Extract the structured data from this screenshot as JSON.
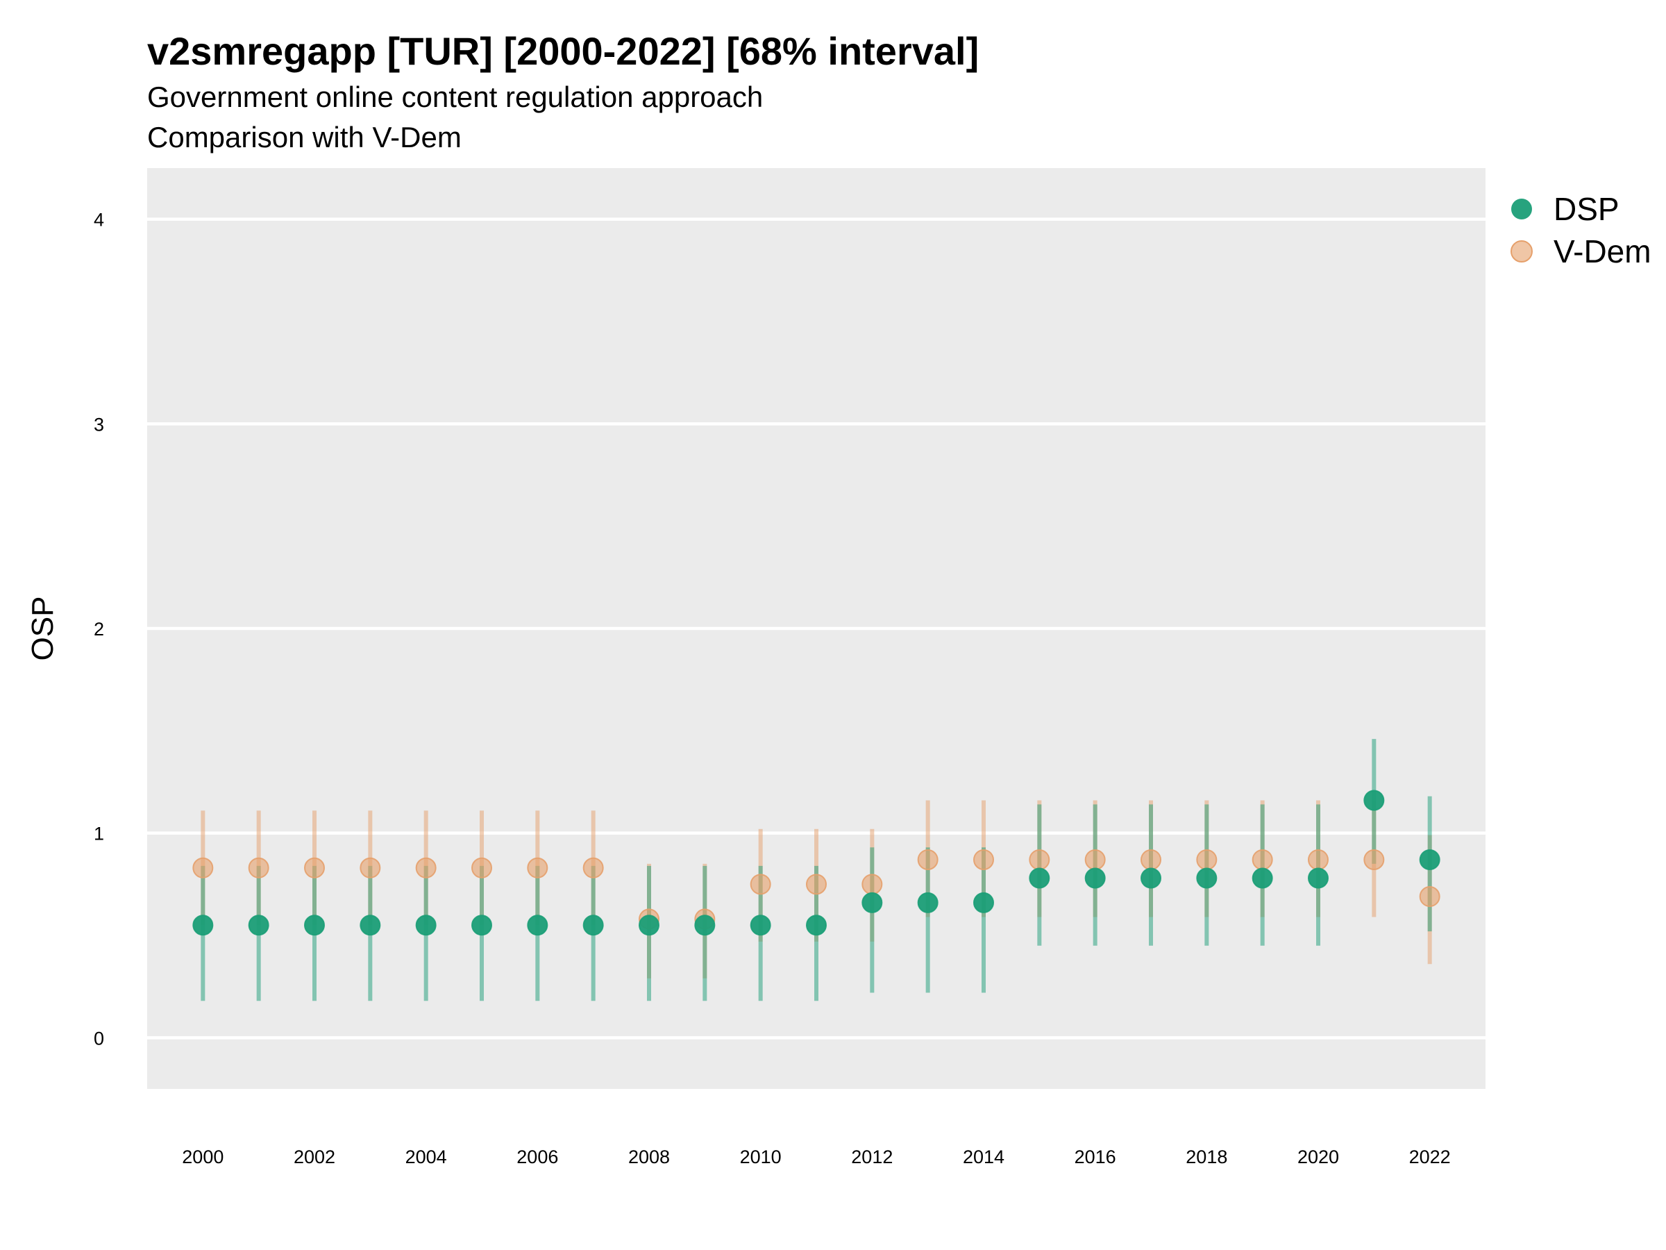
{
  "chart_data": {
    "type": "scatter",
    "title": "v2smregapp [TUR] [2000-2022] [68% interval]",
    "subtitle": [
      "Government online content regulation approach",
      "Comparison with V-Dem"
    ],
    "xlabel": "",
    "ylabel": "OSP",
    "ylim": [
      -0.25,
      4.25
    ],
    "xlim": [
      1999.0,
      2023.0
    ],
    "y_ticks": [
      0,
      1,
      2,
      3,
      4
    ],
    "x_ticks": [
      2000,
      2002,
      2004,
      2006,
      2008,
      2010,
      2012,
      2014,
      2016,
      2018,
      2020,
      2022
    ],
    "grid": true,
    "legend_position": "top-right",
    "x": [
      2000,
      2001,
      2002,
      2003,
      2004,
      2005,
      2006,
      2007,
      2008,
      2009,
      2010,
      2011,
      2012,
      2013,
      2014,
      2015,
      2016,
      2017,
      2018,
      2019,
      2020,
      2021,
      2022
    ],
    "series": [
      {
        "name": "DSP",
        "color": "#1b9e77",
        "values": [
          0.55,
          0.55,
          0.55,
          0.55,
          0.55,
          0.55,
          0.55,
          0.55,
          0.55,
          0.55,
          0.55,
          0.55,
          0.66,
          0.66,
          0.66,
          0.78,
          0.78,
          0.78,
          0.78,
          0.78,
          0.78,
          1.16,
          0.87
        ],
        "lower": [
          0.18,
          0.18,
          0.18,
          0.18,
          0.18,
          0.18,
          0.18,
          0.18,
          0.18,
          0.18,
          0.18,
          0.18,
          0.22,
          0.22,
          0.22,
          0.45,
          0.45,
          0.45,
          0.45,
          0.45,
          0.45,
          0.85,
          0.52
        ],
        "upper": [
          0.84,
          0.84,
          0.84,
          0.84,
          0.84,
          0.84,
          0.84,
          0.84,
          0.84,
          0.84,
          0.84,
          0.84,
          0.93,
          0.93,
          0.93,
          1.14,
          1.14,
          1.14,
          1.14,
          1.14,
          1.14,
          1.46,
          1.18
        ]
      },
      {
        "name": "V-Dem",
        "color": "#e6a06b",
        "values": [
          0.83,
          0.83,
          0.83,
          0.83,
          0.83,
          0.83,
          0.83,
          0.83,
          0.58,
          0.58,
          0.75,
          0.75,
          0.75,
          0.87,
          0.87,
          0.87,
          0.87,
          0.87,
          0.87,
          0.87,
          0.87,
          0.87,
          0.69
        ],
        "lower": [
          0.55,
          0.55,
          0.55,
          0.55,
          0.55,
          0.55,
          0.55,
          0.55,
          0.29,
          0.29,
          0.47,
          0.47,
          0.47,
          0.59,
          0.59,
          0.59,
          0.59,
          0.59,
          0.59,
          0.59,
          0.59,
          0.59,
          0.36
        ],
        "upper": [
          1.11,
          1.11,
          1.11,
          1.11,
          1.11,
          1.11,
          1.11,
          1.11,
          0.85,
          0.85,
          1.02,
          1.02,
          1.02,
          1.16,
          1.16,
          1.16,
          1.16,
          1.16,
          1.16,
          1.16,
          1.16,
          1.16,
          0.99
        ]
      }
    ]
  }
}
